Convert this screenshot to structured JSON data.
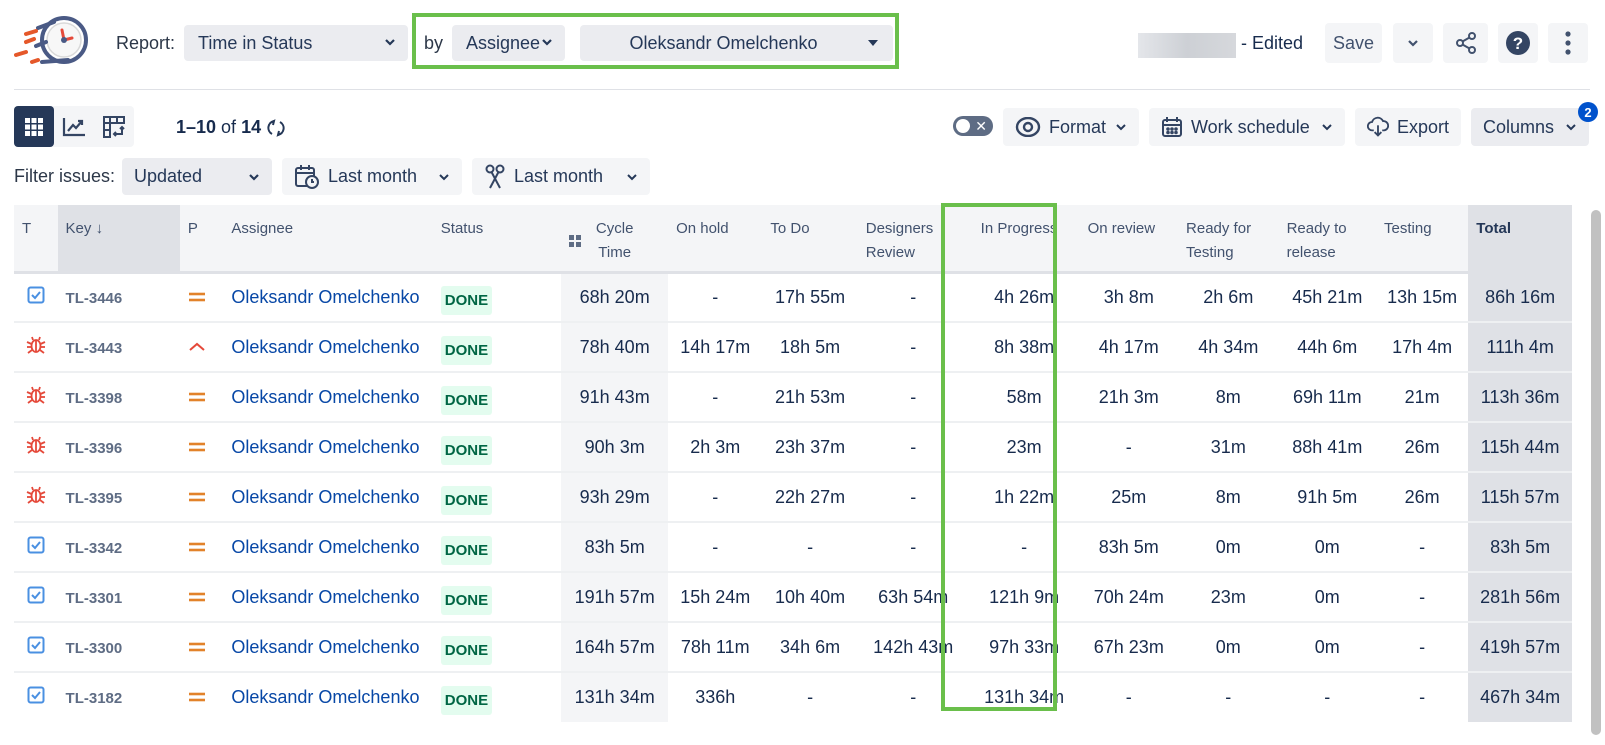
{
  "header": {
    "report_label": "Report:",
    "report_select": "Time in Status",
    "by_label": "by",
    "group_by_select": "Assignee",
    "user_select": "Oleksandr Omelchenko",
    "edited_label": "- Edited",
    "save_label": "Save",
    "icons": {
      "logo": "stopwatch-logo",
      "share": "share-icon",
      "help": "help-icon",
      "more": "more-vertical-icon"
    }
  },
  "toolbar": {
    "pager": {
      "range": "1–10",
      "of": "of",
      "total": "14"
    },
    "views": [
      "grid-view",
      "chart-view",
      "pivot-view"
    ],
    "format_label": "Format",
    "work_schedule_label": "Work schedule",
    "export_label": "Export",
    "columns_label": "Columns",
    "columns_badge": "2"
  },
  "filters": {
    "label": "Filter issues:",
    "field": "Updated",
    "created_range": "Last month",
    "resolved_range": "Last month"
  },
  "table": {
    "headers": {
      "type": "T",
      "key": "Key",
      "priority": "P",
      "assignee": "Assignee",
      "status": "Status",
      "cycle_1": "Cycle",
      "cycle_2": "Time",
      "on_hold": "On hold",
      "todo": "To Do",
      "designers_1": "Designers",
      "designers_2": "Review",
      "in_progress": "In Progress",
      "on_review": "On review",
      "ready_testing_1": "Ready for",
      "ready_testing_2": "Testing",
      "ready_release_1": "Ready to",
      "ready_release_2": "release",
      "testing": "Testing",
      "total": "Total"
    },
    "rows": [
      {
        "type": "story",
        "key": "TL-3446",
        "priority": "medium",
        "assignee": "Oleksandr Omelchenko",
        "status": "DONE",
        "cycle": "68h 20m",
        "on_hold": "-",
        "todo": "17h 55m",
        "designers": "-",
        "in_progress": "4h 26m",
        "on_review": "3h 8m",
        "ready_testing": "2h 6m",
        "ready_release": "45h 21m",
        "testing": "13h 15m",
        "total": "86h 16m"
      },
      {
        "type": "bug",
        "key": "TL-3443",
        "priority": "high",
        "assignee": "Oleksandr Omelchenko",
        "status": "DONE",
        "cycle": "78h 40m",
        "on_hold": "14h 17m",
        "todo": "18h 5m",
        "designers": "-",
        "in_progress": "8h 38m",
        "on_review": "4h 17m",
        "ready_testing": "4h 34m",
        "ready_release": "44h 6m",
        "testing": "17h 4m",
        "total": "111h 4m"
      },
      {
        "type": "bug",
        "key": "TL-3398",
        "priority": "medium",
        "assignee": "Oleksandr Omelchenko",
        "status": "DONE",
        "cycle": "91h 43m",
        "on_hold": "-",
        "todo": "21h 53m",
        "designers": "-",
        "in_progress": "58m",
        "on_review": "21h 3m",
        "ready_testing": "8m",
        "ready_release": "69h 11m",
        "testing": "21m",
        "total": "113h 36m"
      },
      {
        "type": "bug",
        "key": "TL-3396",
        "priority": "medium",
        "assignee": "Oleksandr Omelchenko",
        "status": "DONE",
        "cycle": "90h 3m",
        "on_hold": "2h 3m",
        "todo": "23h 37m",
        "designers": "-",
        "in_progress": "23m",
        "on_review": "-",
        "ready_testing": "31m",
        "ready_release": "88h 41m",
        "testing": "26m",
        "total": "115h 44m"
      },
      {
        "type": "bug",
        "key": "TL-3395",
        "priority": "medium",
        "assignee": "Oleksandr Omelchenko",
        "status": "DONE",
        "cycle": "93h 29m",
        "on_hold": "-",
        "todo": "22h 27m",
        "designers": "-",
        "in_progress": "1h 22m",
        "on_review": "25m",
        "ready_testing": "8m",
        "ready_release": "91h 5m",
        "testing": "26m",
        "total": "115h 57m"
      },
      {
        "type": "story",
        "key": "TL-3342",
        "priority": "medium",
        "assignee": "Oleksandr Omelchenko",
        "status": "DONE",
        "cycle": "83h 5m",
        "on_hold": "-",
        "todo": "-",
        "designers": "-",
        "in_progress": "-",
        "on_review": "83h 5m",
        "ready_testing": "0m",
        "ready_release": "0m",
        "testing": "-",
        "total": "83h 5m"
      },
      {
        "type": "story",
        "key": "TL-3301",
        "priority": "medium",
        "assignee": "Oleksandr Omelchenko",
        "status": "DONE",
        "cycle": "191h 57m",
        "on_hold": "15h 24m",
        "todo": "10h 40m",
        "designers": "63h 54m",
        "in_progress": "121h 9m",
        "on_review": "70h 24m",
        "ready_testing": "23m",
        "ready_release": "0m",
        "testing": "-",
        "total": "281h 56m"
      },
      {
        "type": "story",
        "key": "TL-3300",
        "priority": "medium",
        "assignee": "Oleksandr Omelchenko",
        "status": "DONE",
        "cycle": "164h 57m",
        "on_hold": "78h 11m",
        "todo": "34h 6m",
        "designers": "142h 43m",
        "in_progress": "97h 33m",
        "on_review": "67h 23m",
        "ready_testing": "0m",
        "ready_release": "0m",
        "testing": "-",
        "total": "419h 57m"
      },
      {
        "type": "story",
        "key": "TL-3182",
        "priority": "medium",
        "assignee": "Oleksandr Omelchenko",
        "status": "DONE",
        "cycle": "131h 34m",
        "on_hold": "336h",
        "todo": "-",
        "designers": "-",
        "in_progress": "131h 34m",
        "on_review": "-",
        "ready_testing": "-",
        "ready_release": "-",
        "testing": "-",
        "total": "467h 34m"
      }
    ]
  },
  "colors": {
    "highlight": "#6abf4b",
    "link": "#0747a6",
    "done_bg": "#e3fcef",
    "done_text": "#006644",
    "bug": "#e5493a",
    "story": "#4a90e2",
    "priority_medium": "#e2822a",
    "accent_dark": "#253858"
  }
}
